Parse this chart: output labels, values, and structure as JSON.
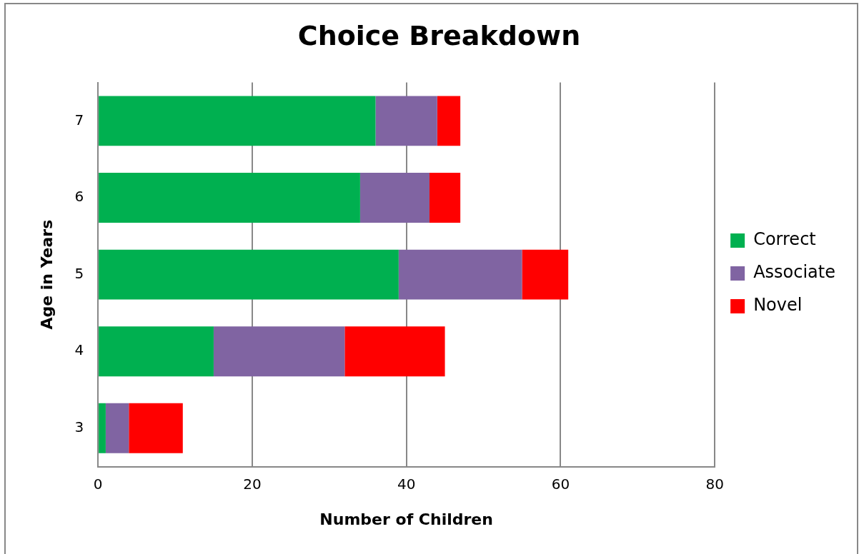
{
  "chart_data": {
    "type": "bar",
    "orientation": "horizontal",
    "stacked": true,
    "title": "Choice Breakdown",
    "xlabel": "Number of Children",
    "ylabel": "Age in Years",
    "categories": [
      "7",
      "6",
      "5",
      "4",
      "3"
    ],
    "series": [
      {
        "name": "Correct",
        "color": "#00b050",
        "values": [
          36,
          34,
          39,
          15,
          1
        ]
      },
      {
        "name": "Associate",
        "color": "#8064a2",
        "values": [
          8,
          9,
          16,
          17,
          3
        ]
      },
      {
        "name": "Novel",
        "color": "#ff0000",
        "values": [
          3,
          4,
          6,
          13,
          7
        ]
      }
    ],
    "xlim": [
      0,
      80
    ],
    "xticks": [
      0,
      20,
      40,
      60,
      80
    ],
    "grid": "x",
    "legend": "right"
  }
}
